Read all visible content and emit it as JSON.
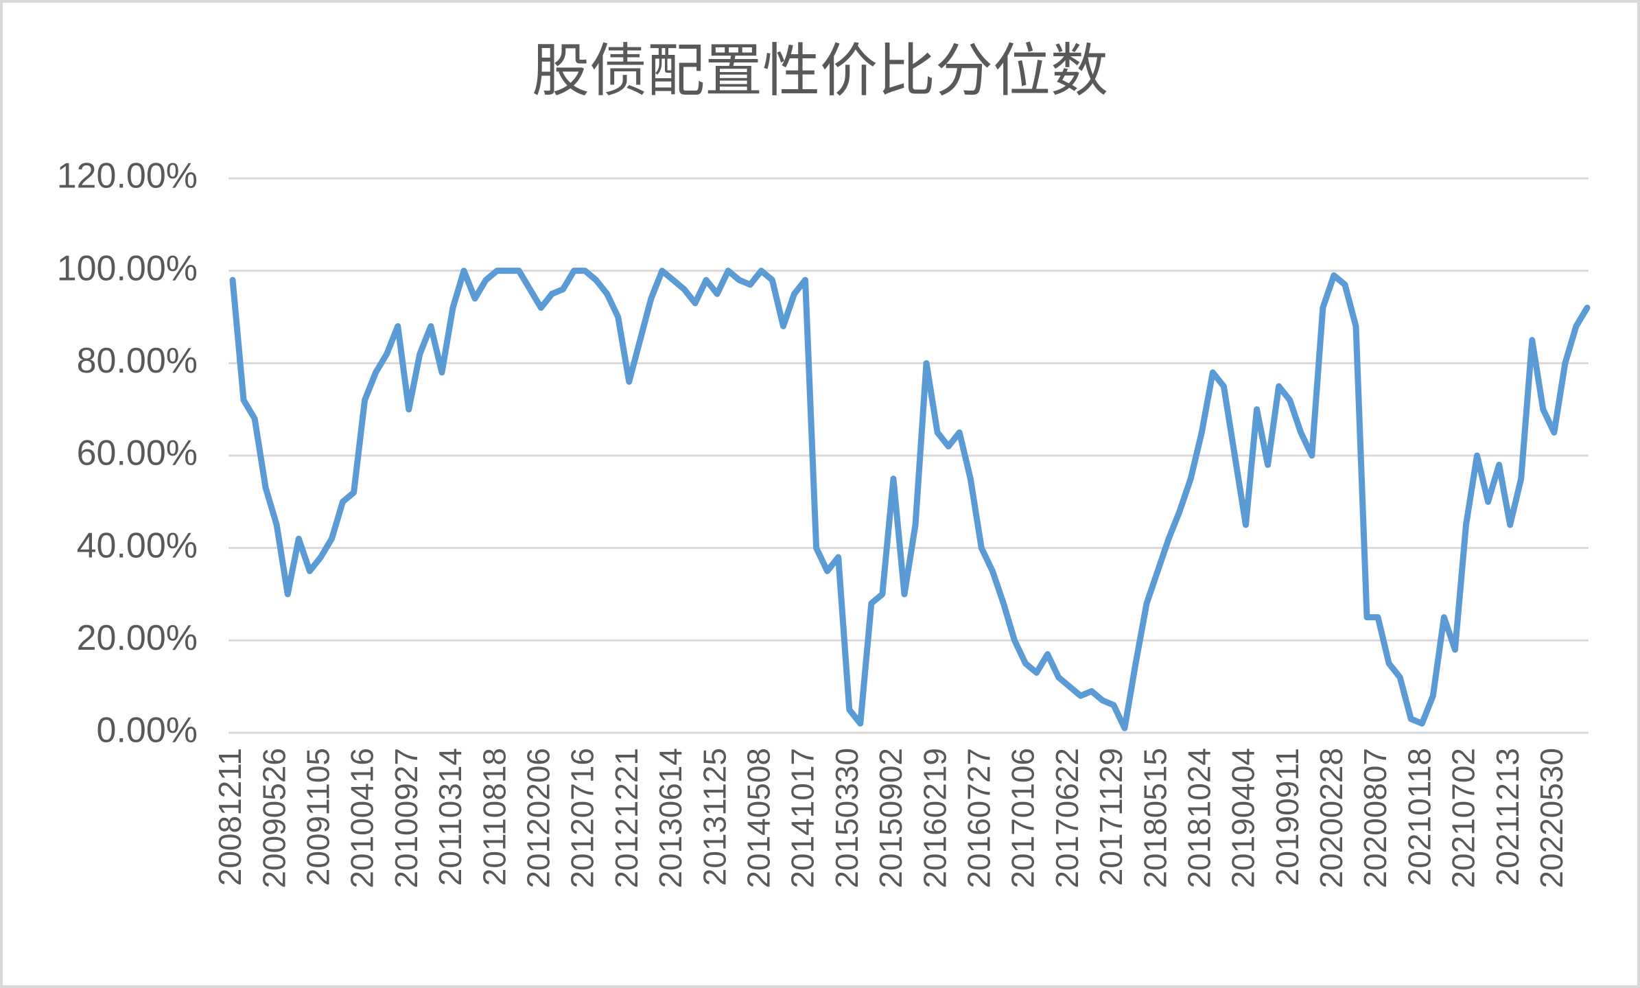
{
  "chart_data": {
    "type": "line",
    "title": "股债配置性价比分位数",
    "categories": [
      "20081211",
      null,
      null,
      null,
      "20090526",
      null,
      null,
      null,
      "20091105",
      null,
      null,
      null,
      "20100416",
      null,
      null,
      null,
      "20100927",
      null,
      null,
      null,
      "20110314",
      null,
      null,
      null,
      "20110818",
      null,
      null,
      null,
      "20120206",
      null,
      null,
      null,
      "20120716",
      null,
      null,
      null,
      "20121221",
      null,
      null,
      null,
      "20130614",
      null,
      null,
      null,
      "20131125",
      null,
      null,
      null,
      "20140508",
      null,
      null,
      null,
      "20141017",
      null,
      null,
      null,
      "20150330",
      null,
      null,
      null,
      "20150902",
      null,
      null,
      null,
      "20160219",
      null,
      null,
      null,
      "20160727",
      null,
      null,
      null,
      "20170106",
      null,
      null,
      null,
      "20170622",
      null,
      null,
      null,
      "20171129",
      null,
      null,
      null,
      "20180515",
      null,
      null,
      null,
      "20181024",
      null,
      null,
      null,
      "20190404",
      null,
      null,
      null,
      "20190911",
      null,
      null,
      null,
      "20200228",
      null,
      null,
      null,
      "20200807",
      null,
      null,
      null,
      "20210118",
      null,
      null,
      null,
      "20210702",
      null,
      null,
      null,
      "20211213",
      null,
      null,
      null,
      "20220530",
      null,
      null,
      null
    ],
    "series": [
      {
        "color": "#5b9bd5",
        "values": [
          98,
          72,
          68,
          53,
          45,
          30,
          42,
          35,
          38,
          42,
          50,
          52,
          72,
          78,
          82,
          88,
          70,
          82,
          88,
          78,
          92,
          100,
          94,
          98,
          100,
          100,
          100,
          96,
          92,
          95,
          96,
          100,
          100,
          98,
          95,
          90,
          76,
          85,
          94,
          100,
          98,
          96,
          93,
          98,
          95,
          100,
          98,
          97,
          100,
          98,
          88,
          95,
          98,
          40,
          35,
          38,
          5,
          2,
          28,
          30,
          55,
          30,
          45,
          80,
          65,
          62,
          65,
          55,
          40,
          35,
          28,
          20,
          15,
          13,
          17,
          12,
          10,
          8,
          9,
          7,
          6,
          1,
          15,
          28,
          35,
          42,
          48,
          55,
          65,
          78,
          75,
          60,
          45,
          70,
          58,
          75,
          72,
          65,
          60,
          92,
          99,
          97,
          88,
          25,
          25,
          15,
          12,
          3,
          2,
          8,
          25,
          18,
          45,
          60,
          50,
          58,
          45,
          55,
          85,
          70,
          65,
          80,
          88,
          92
        ]
      }
    ],
    "ylim": [
      0,
      120
    ],
    "yticks": [
      {
        "value": 0,
        "label": "0.00%"
      },
      {
        "value": 20,
        "label": "20.00%"
      },
      {
        "value": 40,
        "label": "40.00%"
      },
      {
        "value": 60,
        "label": "60.00%"
      },
      {
        "value": 80,
        "label": "80.00%"
      },
      {
        "value": 100,
        "label": "100.00%"
      },
      {
        "value": 120,
        "label": "120.00%"
      }
    ],
    "grid": true
  }
}
